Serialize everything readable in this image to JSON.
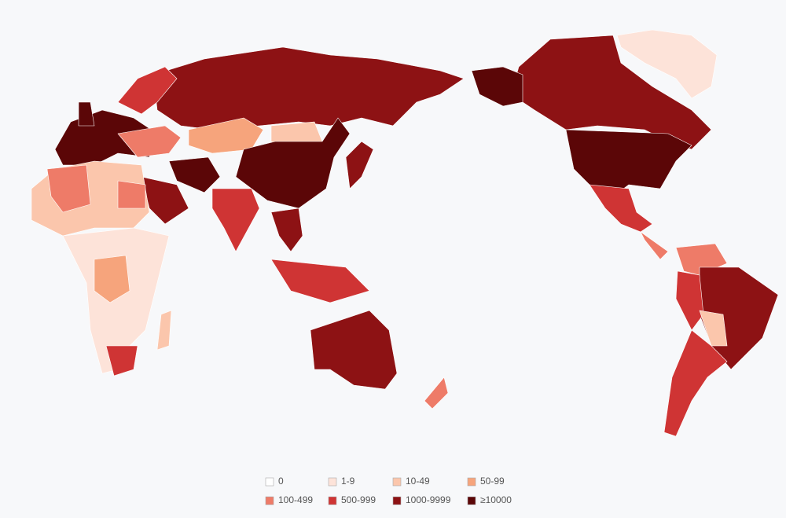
{
  "legend": {
    "items": [
      {
        "label": "0",
        "color": "#ffffff"
      },
      {
        "label": "1-9",
        "color": "#fde3d9"
      },
      {
        "label": "10-49",
        "color": "#fbc6ac"
      },
      {
        "label": "50-99",
        "color": "#f6a47c"
      },
      {
        "label": "100-499",
        "color": "#ee7b68"
      },
      {
        "label": "500-999",
        "color": "#cf3434"
      },
      {
        "label": "1000-9999",
        "color": "#8d1214"
      },
      {
        "label": "≥10000",
        "color": "#5b0607"
      }
    ]
  }
}
